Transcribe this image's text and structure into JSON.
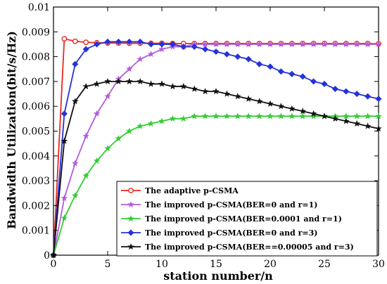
{
  "chart_data": {
    "type": "line",
    "xlabel": "station number/n",
    "ylabel": "Bandwidth Utilization(bit/s/Hz)",
    "xlim": [
      0,
      30
    ],
    "ylim": [
      0,
      0.01
    ],
    "xticks": [
      0,
      5,
      10,
      15,
      20,
      25,
      30
    ],
    "yticks": [
      0,
      0.001,
      0.002,
      0.003,
      0.004,
      0.005,
      0.006,
      0.007,
      0.008,
      0.009,
      0.01
    ],
    "x_tick_labels": [
      "0",
      "5",
      "10",
      "15",
      "20",
      "25",
      "30"
    ],
    "y_tick_labels": [
      "0",
      "0.001",
      "0.002",
      "0.003",
      "0.004",
      "0.005",
      "0.006",
      "0.007",
      "0.008",
      "0.009",
      "0.01"
    ],
    "grid": false,
    "legend_position": "bottom-right",
    "series": [
      {
        "name": "The adaptive p-CSMA",
        "color": "#e8281e",
        "marker": "circle",
        "x": [
          0,
          1,
          2,
          3,
          4,
          5,
          6,
          7,
          8,
          9,
          10,
          11,
          12,
          13,
          14,
          15,
          16,
          17,
          18,
          19,
          20,
          21,
          22,
          23,
          24,
          25,
          26,
          27,
          28,
          29,
          30
        ],
        "y": [
          0,
          0.00872,
          0.00862,
          0.00858,
          0.00856,
          0.00855,
          0.00855,
          0.00854,
          0.00854,
          0.00854,
          0.00854,
          0.00853,
          0.00853,
          0.00853,
          0.00853,
          0.00853,
          0.00853,
          0.00853,
          0.00853,
          0.00853,
          0.00853,
          0.00853,
          0.00853,
          0.00853,
          0.00853,
          0.00853,
          0.00853,
          0.00853,
          0.00853,
          0.00853,
          0.00852
        ]
      },
      {
        "name": "The improved p-CSMA(BER=0 and r=1)",
        "color": "#b35cdd",
        "marker": "star",
        "x": [
          0,
          1,
          2,
          3,
          4,
          5,
          6,
          7,
          8,
          9,
          10,
          11,
          12,
          13,
          14,
          15,
          16,
          17,
          18,
          19,
          20,
          21,
          22,
          23,
          24,
          25,
          26,
          27,
          28,
          29,
          30
        ],
        "y": [
          0,
          0.0023,
          0.0037,
          0.0048,
          0.0057,
          0.0064,
          0.0071,
          0.0075,
          0.0079,
          0.0081,
          0.0083,
          0.0084,
          0.0084,
          0.0085,
          0.0085,
          0.0085,
          0.0085,
          0.0085,
          0.0085,
          0.0085,
          0.0085,
          0.0085,
          0.0085,
          0.0085,
          0.0085,
          0.0085,
          0.0085,
          0.0085,
          0.0085,
          0.0085,
          0.0085
        ]
      },
      {
        "name": "The improved p-CSMA(BER=0.0001 and r=1)",
        "color": "#33cc33",
        "marker": "star",
        "x": [
          0,
          1,
          2,
          3,
          4,
          5,
          6,
          7,
          8,
          9,
          10,
          11,
          12,
          13,
          14,
          15,
          16,
          17,
          18,
          19,
          20,
          21,
          22,
          23,
          24,
          25,
          26,
          27,
          28,
          29,
          30
        ],
        "y": [
          0,
          0.0015,
          0.0024,
          0.0032,
          0.0038,
          0.0043,
          0.0047,
          0.005,
          0.0052,
          0.0053,
          0.0054,
          0.0055,
          0.0055,
          0.0056,
          0.0056,
          0.0056,
          0.0056,
          0.0056,
          0.0056,
          0.0056,
          0.0056,
          0.0056,
          0.0056,
          0.0056,
          0.0056,
          0.0056,
          0.0056,
          0.0056,
          0.0056,
          0.0056,
          0.0056
        ]
      },
      {
        "name": "The improved p-CSMA(BER=0 and r=3)",
        "color": "#2432d9",
        "marker": "diamond",
        "x": [
          0,
          1,
          2,
          3,
          4,
          5,
          6,
          7,
          8,
          9,
          10,
          11,
          12,
          13,
          14,
          15,
          16,
          17,
          18,
          19,
          20,
          21,
          22,
          23,
          24,
          25,
          26,
          27,
          28,
          29,
          30
        ],
        "y": [
          0,
          0.0057,
          0.0077,
          0.0083,
          0.0085,
          0.0086,
          0.0086,
          0.0086,
          0.0086,
          0.0085,
          0.0085,
          0.0085,
          0.0084,
          0.0084,
          0.0083,
          0.0082,
          0.0081,
          0.008,
          0.0079,
          0.0077,
          0.0076,
          0.0074,
          0.0073,
          0.0072,
          0.007,
          0.0069,
          0.0067,
          0.0066,
          0.0065,
          0.0064,
          0.0063
        ]
      },
      {
        "name": "The improved p-CSMA(BER==0.00005 and r=3)",
        "color": "#111111",
        "marker": "star",
        "x": [
          0,
          1,
          2,
          3,
          4,
          5,
          6,
          7,
          8,
          9,
          10,
          11,
          12,
          13,
          14,
          15,
          16,
          17,
          18,
          19,
          20,
          21,
          22,
          23,
          24,
          25,
          26,
          27,
          28,
          29,
          30
        ],
        "y": [
          0,
          0.0046,
          0.0062,
          0.0068,
          0.0069,
          0.007,
          0.007,
          0.007,
          0.007,
          0.0069,
          0.0069,
          0.0068,
          0.0068,
          0.0067,
          0.0066,
          0.0066,
          0.0065,
          0.0064,
          0.0063,
          0.0062,
          0.0061,
          0.006,
          0.0059,
          0.0058,
          0.0057,
          0.0056,
          0.0055,
          0.0054,
          0.0053,
          0.0052,
          0.0051
        ]
      }
    ]
  }
}
